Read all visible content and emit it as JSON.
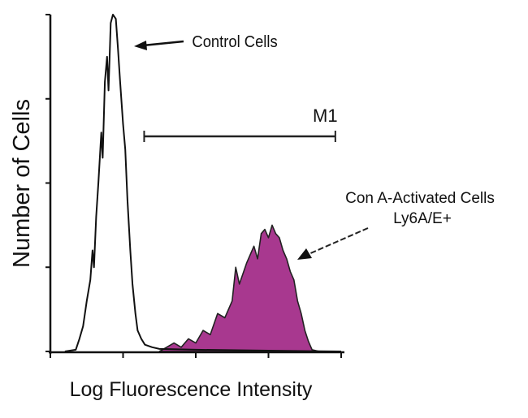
{
  "chart_data": {
    "type": "area",
    "title": "",
    "xlabel": "Log Fluorescence Intensity",
    "ylabel": "Number of Cells",
    "x_scale": "log decades",
    "xlim": [
      0,
      4
    ],
    "ylim": [
      0,
      4
    ],
    "x_ticks": [
      0,
      1,
      2,
      3,
      4
    ],
    "y_ticks": [
      0,
      1,
      2,
      3,
      4
    ],
    "tick_labels_shown": false,
    "grid": false,
    "series": [
      {
        "name": "Control Cells",
        "style": "outline",
        "color": "#111111",
        "x": [
          0.2,
          0.35,
          0.4,
          0.45,
          0.5,
          0.55,
          0.58,
          0.6,
          0.63,
          0.66,
          0.7,
          0.72,
          0.75,
          0.78,
          0.8,
          0.83,
          0.86,
          0.9,
          0.93,
          0.96,
          1.0,
          1.03,
          1.06,
          1.1,
          1.13,
          1.17,
          1.2,
          1.25,
          1.3,
          1.4,
          1.5,
          2.0,
          3.0,
          4.0
        ],
        "y": [
          0,
          0.02,
          0.15,
          0.3,
          0.6,
          0.85,
          1.2,
          1.0,
          1.6,
          2.0,
          2.6,
          2.3,
          3.2,
          3.5,
          3.1,
          3.9,
          4.0,
          3.95,
          3.6,
          3.2,
          2.7,
          2.4,
          1.8,
          1.2,
          0.8,
          0.45,
          0.25,
          0.15,
          0.08,
          0.05,
          0.03,
          0.02,
          0.01,
          0
        ]
      },
      {
        "name": "Con A-Activated Cells Ly6A/E+",
        "style": "filled",
        "color": "#a8388f",
        "x": [
          1.5,
          1.6,
          1.7,
          1.8,
          1.9,
          2.0,
          2.1,
          2.2,
          2.3,
          2.4,
          2.5,
          2.55,
          2.6,
          2.7,
          2.75,
          2.8,
          2.85,
          2.9,
          2.95,
          3.0,
          3.05,
          3.1,
          3.15,
          3.2,
          3.25,
          3.3,
          3.35,
          3.4,
          3.45,
          3.5,
          3.55,
          3.6,
          3.7
        ],
        "y": [
          0,
          0.05,
          0.1,
          0.05,
          0.15,
          0.1,
          0.25,
          0.2,
          0.45,
          0.4,
          0.6,
          1.0,
          0.8,
          1.05,
          1.15,
          1.25,
          1.1,
          1.4,
          1.45,
          1.35,
          1.5,
          1.4,
          1.35,
          1.2,
          1.1,
          0.95,
          0.85,
          0.6,
          0.45,
          0.25,
          0.12,
          0.02,
          0
        ]
      }
    ],
    "annotations": {
      "control_label": "Control Cells",
      "activated_label_line1": "Con A-Activated Cells",
      "activated_label_line2": "Ly6A/E+",
      "marker_label": "M1",
      "marker_range": [
        1.29,
        3.92
      ]
    }
  }
}
